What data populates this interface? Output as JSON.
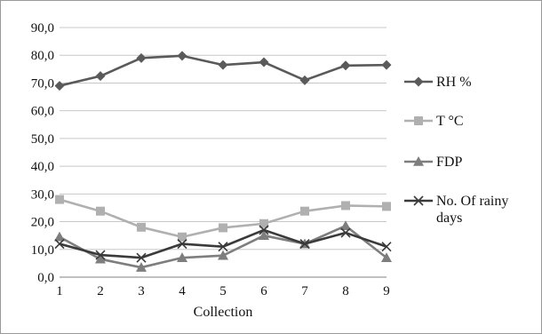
{
  "chart_data": {
    "type": "line",
    "title": "",
    "xlabel": "Collection",
    "ylabel": "",
    "x": [
      1,
      2,
      3,
      4,
      5,
      6,
      7,
      8,
      9
    ],
    "x_tick_labels": [
      "1",
      "2",
      "3",
      "4",
      "5",
      "6",
      "7",
      "8",
      "9"
    ],
    "ylim": [
      0,
      90
    ],
    "y_ticks": [
      0,
      10,
      20,
      30,
      40,
      50,
      60,
      70,
      80,
      90
    ],
    "y_tick_labels": [
      "0,0",
      "10,0",
      "20,0",
      "30,0",
      "40,0",
      "50,0",
      "60,0",
      "70,0",
      "80,0",
      "90,0"
    ],
    "grid": "horizontal",
    "legend_position": "right",
    "series": [
      {
        "name": "RH %",
        "marker": "diamond",
        "color": "#5a5a5a",
        "values": [
          69.0,
          72.5,
          79.0,
          79.8,
          76.5,
          77.5,
          71.0,
          76.3,
          76.5
        ]
      },
      {
        "name": "T °C",
        "marker": "square",
        "color": "#b0b0b0",
        "values": [
          28.0,
          23.8,
          18.0,
          14.5,
          17.8,
          19.3,
          23.8,
          25.8,
          25.5
        ]
      },
      {
        "name": "FDP",
        "marker": "triangle",
        "color": "#7e7e7e",
        "values": [
          14.5,
          6.5,
          3.5,
          7.0,
          7.8,
          15.0,
          12.0,
          18.5,
          7.0
        ]
      },
      {
        "name": "No. Of rainy days",
        "legend_lines": [
          "No. Of rainy",
          "days"
        ],
        "marker": "x",
        "color": "#3a3a3a",
        "values": [
          12.0,
          8.0,
          7.0,
          12.0,
          11.0,
          17.0,
          12.0,
          16.0,
          11.0
        ]
      }
    ]
  }
}
